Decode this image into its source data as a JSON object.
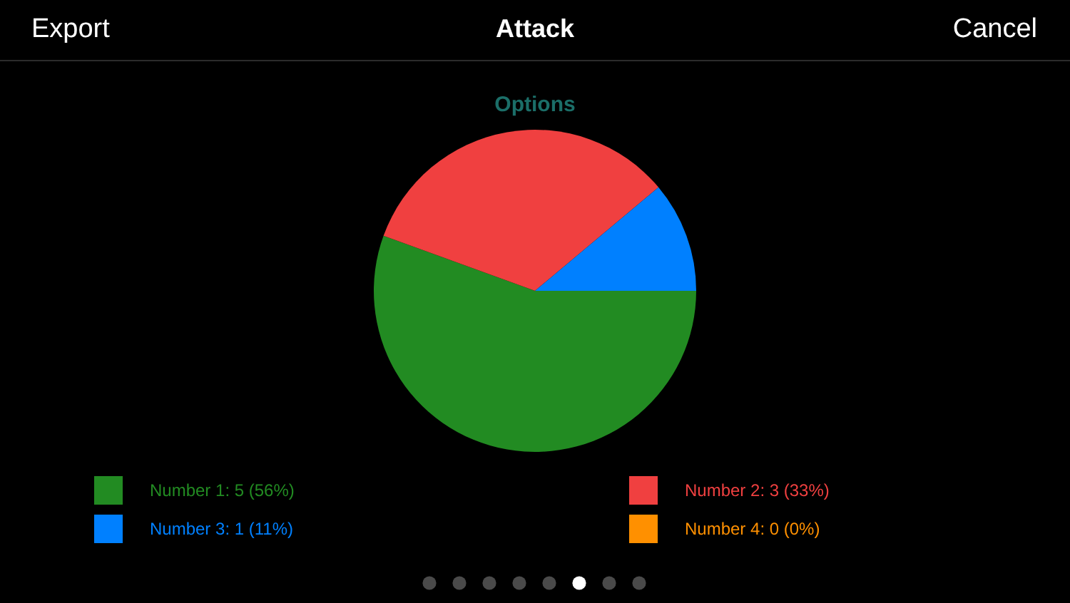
{
  "chart_data": {
    "type": "pie",
    "title": "Attack",
    "subtitle": "Options",
    "annotations": [
      "Export",
      "Cancel"
    ],
    "categories": [
      "Number 1: 5 (56%)",
      "Number 2: 3 (33%)",
      "Number 3: 1 (11%)",
      "Number 4: 0 (0%)"
    ],
    "values": [
      5,
      3,
      1,
      0
    ],
    "colors": [
      "#228b22",
      "#f04040",
      "#0080ff",
      "#ff9000"
    ],
    "legend": "bottom"
  }
}
